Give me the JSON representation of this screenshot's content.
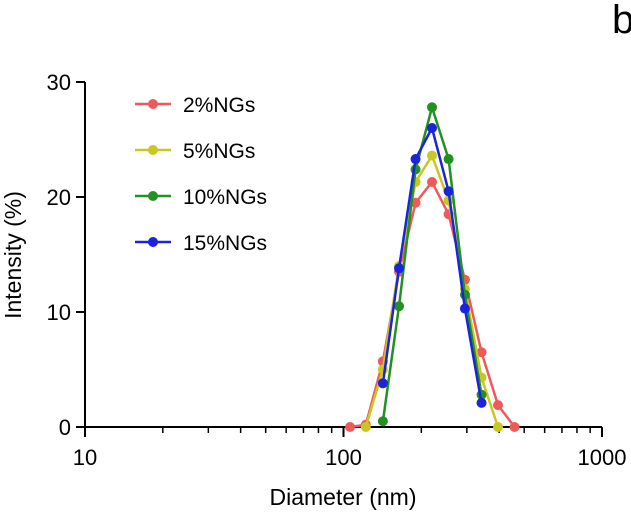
{
  "panel_letter": "b",
  "chart_data": {
    "type": "line",
    "xlabel": "Diameter (nm)",
    "ylabel": "Intensity (%)",
    "x_scale": "log",
    "xlim": [
      10,
      1000
    ],
    "ylim": [
      0,
      30
    ],
    "x_ticks": [
      10,
      100,
      1000
    ],
    "x_tick_labels": [
      "10",
      "100",
      "1000"
    ],
    "y_ticks": [
      0,
      10,
      20,
      30
    ],
    "y_tick_labels": [
      "0",
      "10",
      "20",
      "30"
    ],
    "grid": false,
    "legend_position": "top-left",
    "series": [
      {
        "name": "2%NGs",
        "color": "#ee5a5a",
        "x": [
          106,
          122,
          142,
          164,
          190,
          220,
          255,
          295,
          342,
          396,
          459
        ],
        "values": [
          0,
          0.2,
          5.7,
          13.5,
          19.5,
          21.3,
          18.5,
          12.8,
          6.5,
          1.9,
          0
        ]
      },
      {
        "name": "5%NGs",
        "color": "#c8c820",
        "x": [
          122,
          142,
          164,
          190,
          220,
          255,
          295,
          342,
          396
        ],
        "values": [
          0,
          5.0,
          14.0,
          21.3,
          23.6,
          19.7,
          12.0,
          4.3,
          0
        ]
      },
      {
        "name": "10%NGs",
        "color": "#229122",
        "x": [
          142,
          164,
          190,
          220,
          255,
          295,
          342
        ],
        "values": [
          0.5,
          10.5,
          22.4,
          27.8,
          23.3,
          11.5,
          2.8
        ]
      },
      {
        "name": "15%NGs",
        "color": "#1a24dc",
        "x": [
          142,
          164,
          190,
          220,
          255,
          295,
          342
        ],
        "values": [
          3.8,
          13.8,
          23.3,
          26.0,
          20.5,
          10.3,
          2.1
        ]
      }
    ]
  }
}
